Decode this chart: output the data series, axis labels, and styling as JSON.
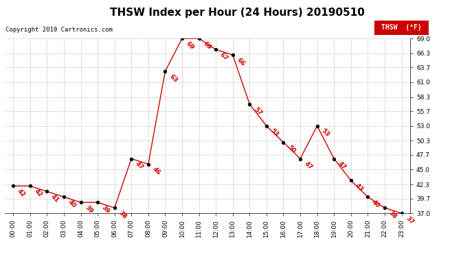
{
  "title": "THSW Index per Hour (24 Hours) 20190510",
  "copyright": "Copyright 2019 Cartronics.com",
  "legend_label": "THSW  (°F)",
  "hours": [
    0,
    1,
    2,
    3,
    4,
    5,
    6,
    7,
    8,
    9,
    10,
    11,
    12,
    13,
    14,
    15,
    16,
    17,
    18,
    19,
    20,
    21,
    22,
    23
  ],
  "values": [
    42,
    42,
    41,
    40,
    39,
    39,
    38,
    47,
    46,
    63,
    69,
    69,
    67,
    66,
    57,
    53,
    50,
    47,
    53,
    47,
    43,
    40,
    38,
    37
  ],
  "line_color": "#cc0000",
  "dot_color": "#000000",
  "label_color": "#cc0000",
  "background_color": "#ffffff",
  "grid_color": "#b0b0b0",
  "title_color": "#000000",
  "copyright_color": "#000000",
  "legend_bg": "#cc0000",
  "legend_text_color": "#ffffff",
  "ylim_min": 37.0,
  "ylim_max": 69.0,
  "yticks": [
    37.0,
    39.7,
    42.3,
    45.0,
    47.7,
    50.3,
    53.0,
    55.7,
    58.3,
    61.0,
    63.7,
    66.3,
    69.0
  ],
  "title_fontsize": 11,
  "label_fontsize": 6.5,
  "tick_fontsize": 6.5,
  "copyright_fontsize": 6.5
}
